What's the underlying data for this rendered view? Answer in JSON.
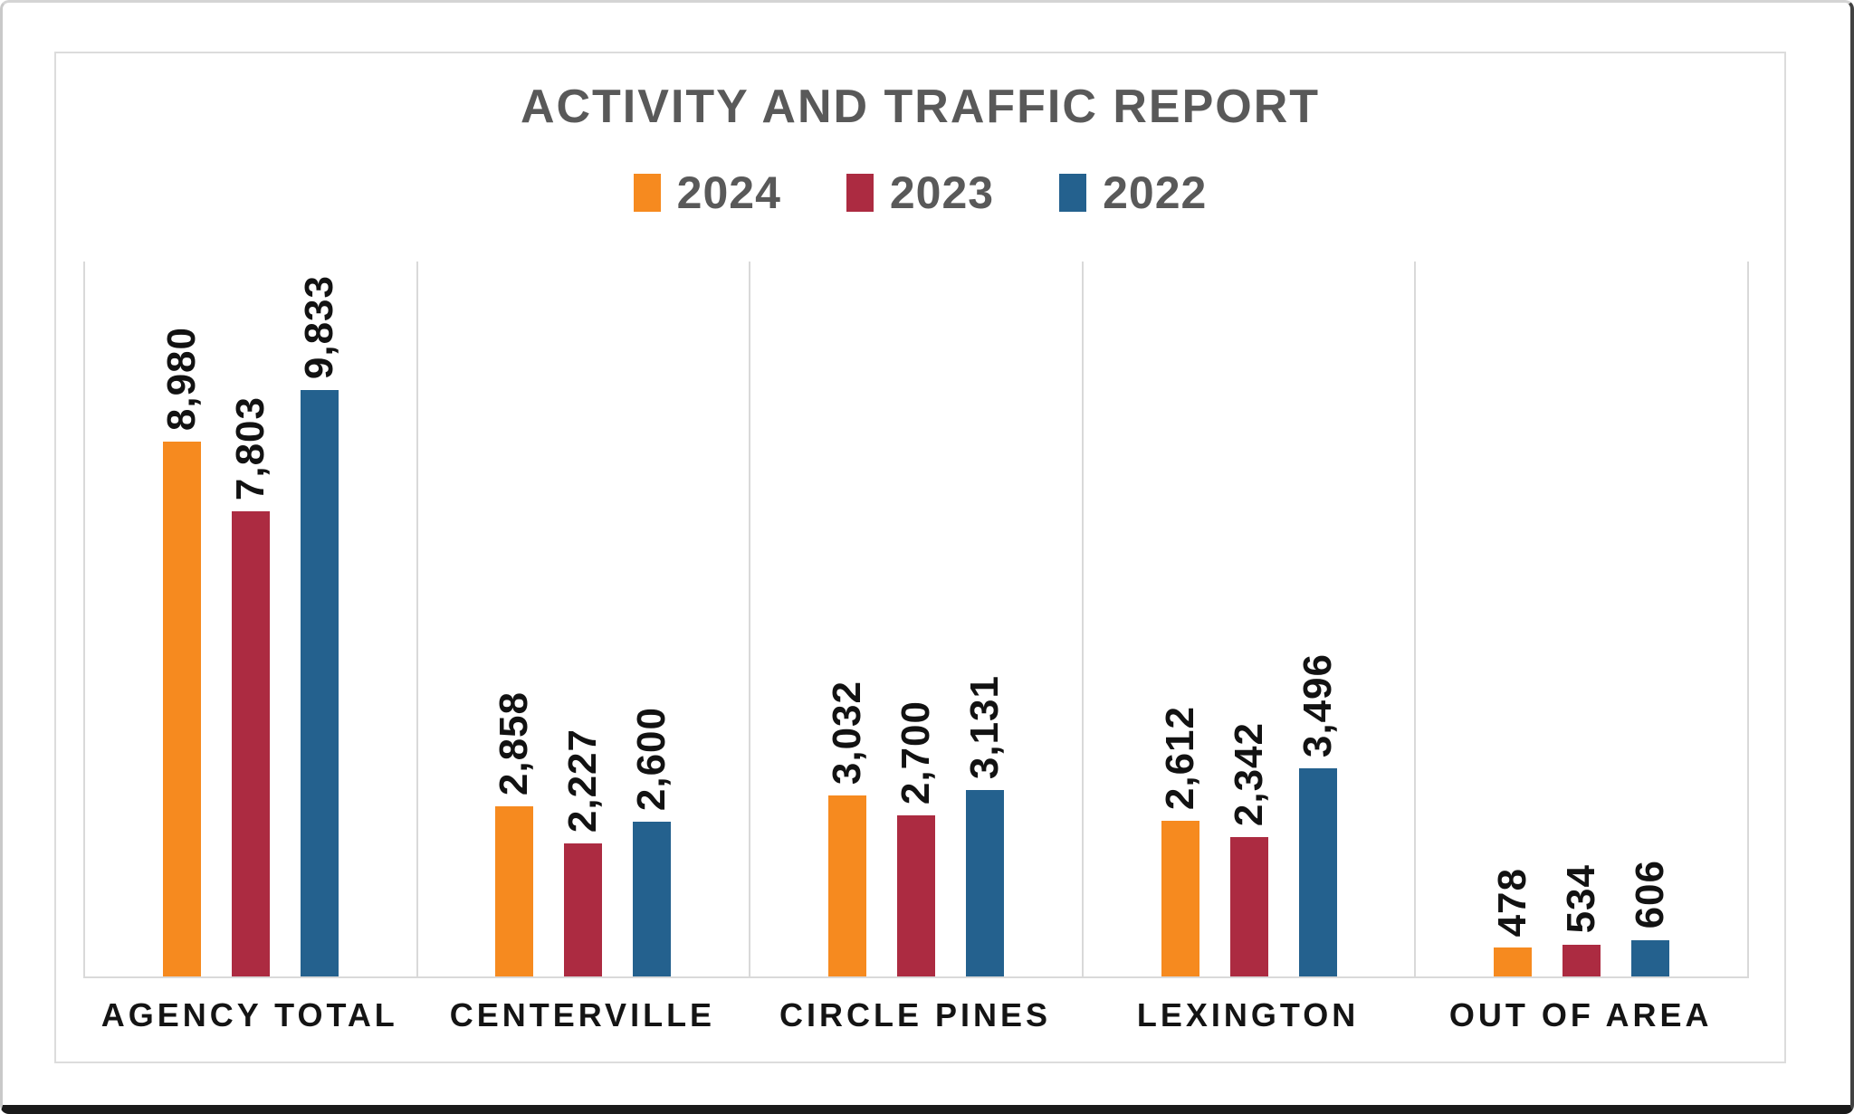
{
  "chart_data": {
    "type": "bar",
    "title": "ACTIVITY AND TRAFFIC REPORT",
    "categories": [
      "AGENCY TOTAL",
      "CENTERVILLE",
      "CIRCLE PINES",
      "LEXINGTON",
      "OUT OF AREA"
    ],
    "series": [
      {
        "name": "2024",
        "color": "#F68A1F",
        "values": [
          8980,
          2858,
          3032,
          2612,
          478
        ],
        "labels": [
          "8,980",
          "2,858",
          "3,032",
          "2,612",
          "478"
        ]
      },
      {
        "name": "2023",
        "color": "#AC2B41",
        "values": [
          7803,
          2227,
          2700,
          2342,
          534
        ],
        "labels": [
          "7,803",
          "2,227",
          "2,700",
          "2,342",
          "534"
        ]
      },
      {
        "name": "2022",
        "color": "#24618E",
        "values": [
          9833,
          2600,
          3131,
          3496,
          606
        ],
        "labels": [
          "9,833",
          "2,600",
          "3,131",
          "3,496",
          "606"
        ]
      }
    ],
    "ylim": [
      0,
      12000
    ],
    "xlabel": "",
    "ylabel": "",
    "legend_position": "top-center",
    "grid": "vertical category separator lines and baseline only; no y-axis ticks or labels",
    "value_label_rotation_deg": 90
  },
  "colors": {
    "title_text": "#595959",
    "legend_text": "#595959",
    "axis_and_grid_lines": "#D9D9D9",
    "value_label_text": "#121212",
    "category_label_text": "#141414",
    "card_border": "#DCDCDC",
    "frame_bottom_edge": "#1A1A1A"
  }
}
